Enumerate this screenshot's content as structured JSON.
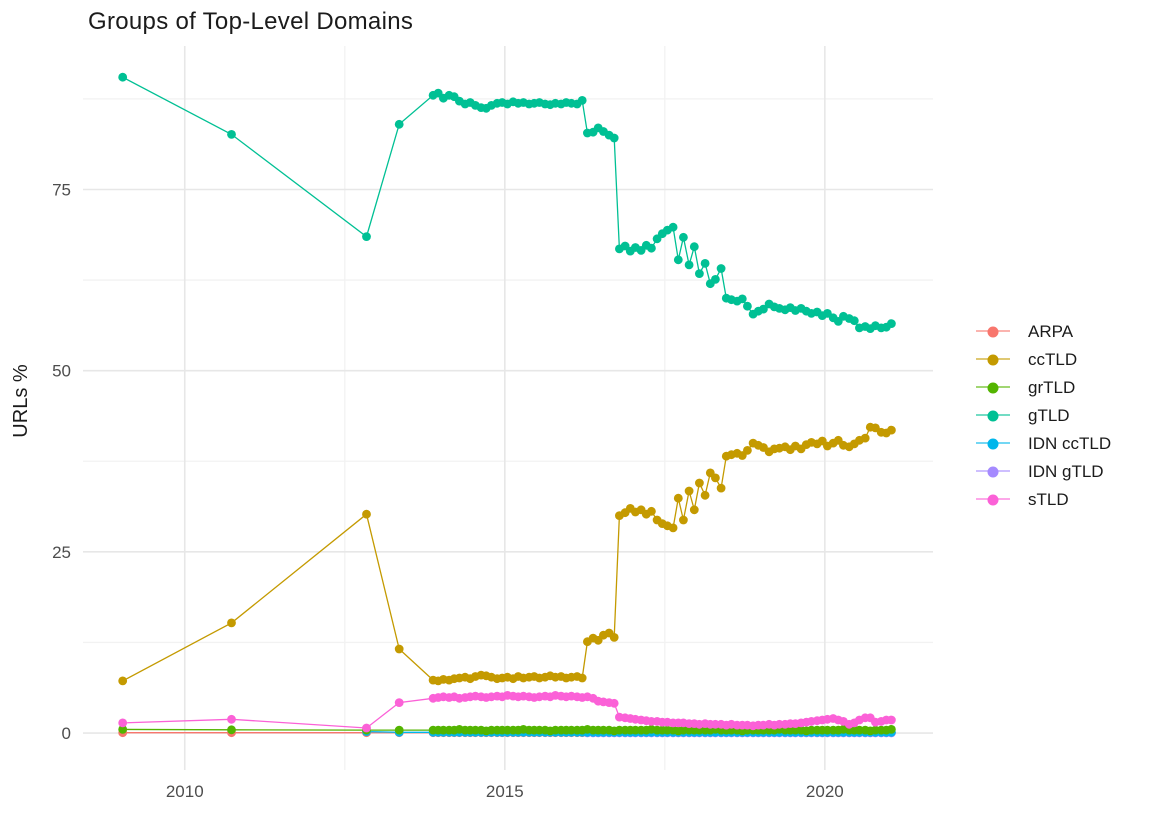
{
  "title": "Groups of Top-Level Domains",
  "ylabel": "URLs %",
  "chart_data": {
    "type": "line",
    "title": "Groups of Top-Level Domains",
    "xlabel": "",
    "ylabel": "URLs %",
    "grid": true,
    "legend_position": "right",
    "point_radius": 4.4,
    "line_width": 1.3,
    "xlim": [
      2008.41,
      2021.69
    ],
    "ylim": [
      -5.1,
      94.8
    ],
    "x_ticks": [
      2010,
      2015,
      2020
    ],
    "x_tick_labels": [
      "2010",
      "2015",
      "2020"
    ],
    "x_minor_ticks": [
      2012.5,
      2017.5
    ],
    "y_ticks": [
      0,
      25,
      50,
      75
    ],
    "y_tick_labels": [
      "0",
      "25",
      "50",
      "75"
    ],
    "y_minor_ticks": [
      12.5,
      37.5,
      62.5,
      87.5
    ],
    "colors": {
      "background": "#ffffff",
      "grid_major": "#e7e7e7",
      "grid_minor": "#f2f2f2",
      "tick_text": "#4d4d4d",
      "title_text": "#1b1b1b"
    },
    "draw_order": [
      "ARPA",
      "IDN gTLD",
      "IDN ccTLD",
      "grTLD",
      "ccTLD",
      "gTLD",
      "sTLD"
    ],
    "x_monthly": [
      2013.88,
      2013.96,
      2014.04,
      2014.13,
      2014.21,
      2014.29,
      2014.38,
      2014.46,
      2014.54,
      2014.63,
      2014.71,
      2014.79,
      2014.88,
      2014.96,
      2015.04,
      2015.13,
      2015.21,
      2015.29,
      2015.38,
      2015.46,
      2015.54,
      2015.63,
      2015.71,
      2015.79,
      2015.88,
      2015.96,
      2016.04,
      2016.13,
      2016.21,
      2016.29,
      2016.38,
      2016.46,
      2016.54,
      2016.63,
      2016.71,
      2016.79,
      2016.88,
      2016.96,
      2017.04,
      2017.13,
      2017.21,
      2017.29,
      2017.38,
      2017.46,
      2017.54,
      2017.63,
      2017.71,
      2017.79,
      2017.88,
      2017.96,
      2018.04,
      2018.13,
      2018.21,
      2018.29,
      2018.38,
      2018.46,
      2018.54,
      2018.63,
      2018.71,
      2018.79,
      2018.88,
      2018.96,
      2019.04,
      2019.13,
      2019.21,
      2019.29,
      2019.38,
      2019.46,
      2019.54,
      2019.63,
      2019.71,
      2019.79,
      2019.88,
      2019.96,
      2020.04,
      2020.13,
      2020.21,
      2020.29,
      2020.38,
      2020.46,
      2020.54,
      2020.63,
      2020.71,
      2020.79,
      2020.88,
      2020.96,
      2021.04
    ],
    "series": [
      {
        "name": "ARPA",
        "color": "#F8766D",
        "x_prefix": [
          2009.03,
          2010.73,
          2012.84,
          2013.35
        ],
        "y_prefix": [
          0.05,
          0.05,
          0.05,
          0.05
        ],
        "monthly_start_index": 0,
        "y_monthly": [
          0.05,
          0.05,
          0.05,
          0.05,
          0.05,
          0.05,
          0.05,
          0.05,
          0.05,
          0.05,
          0.05,
          0.05,
          0.05,
          0.05,
          0.05,
          0.05,
          0.05,
          0.05,
          0.05,
          0.05,
          0.05,
          0.05,
          0.05,
          0.05,
          0.05,
          0.05,
          0.05,
          0.05,
          0.05,
          0.05,
          0.05,
          0.05,
          0.05,
          0.05,
          0.05,
          0.05,
          0.05,
          0.05,
          0.05,
          0.05,
          0.05,
          0.05,
          0.05,
          0.05,
          0.05,
          0.05,
          0.05,
          0.05,
          0.05,
          0.05,
          0.05,
          0.05,
          0.05,
          0.05,
          0.05,
          0.05,
          0.05,
          0.05,
          0.05,
          0.05,
          0.05,
          0.05,
          0.05,
          0.05,
          0.05,
          0.05,
          0.05,
          0.05,
          0.05,
          0.05,
          0.05,
          0.05,
          0.05,
          0.05,
          0.05,
          0.05,
          0.05,
          0.05,
          0.05,
          0.05,
          0.05,
          0.05,
          0.05,
          0.05,
          0.05,
          0.05,
          0.05
        ]
      },
      {
        "name": "ccTLD",
        "color": "#C49A00",
        "x_prefix": [
          2009.03,
          2010.73,
          2012.84,
          2013.35
        ],
        "y_prefix": [
          7.2,
          15.2,
          30.2,
          11.6
        ],
        "monthly_start_index": 0,
        "y_monthly": [
          7.3,
          7.2,
          7.4,
          7.3,
          7.5,
          7.6,
          7.7,
          7.5,
          7.8,
          8.0,
          7.9,
          7.7,
          7.5,
          7.6,
          7.7,
          7.5,
          7.8,
          7.6,
          7.7,
          7.8,
          7.6,
          7.7,
          7.9,
          7.7,
          7.8,
          7.6,
          7.7,
          7.8,
          7.6,
          12.6,
          13.1,
          12.8,
          13.5,
          13.8,
          13.2,
          30.0,
          30.4,
          31.0,
          30.5,
          30.8,
          30.2,
          30.6,
          29.4,
          28.9,
          28.6,
          28.3,
          32.4,
          29.4,
          33.4,
          30.8,
          34.5,
          32.8,
          35.9,
          35.2,
          33.8,
          38.2,
          38.4,
          38.6,
          38.3,
          39.0,
          40.0,
          39.7,
          39.4,
          38.8,
          39.2,
          39.3,
          39.5,
          39.1,
          39.6,
          39.2,
          39.8,
          40.1,
          39.9,
          40.3,
          39.6,
          40.0,
          40.4,
          39.7,
          39.5,
          39.9,
          40.4,
          40.7,
          42.2,
          42.1,
          41.5,
          41.4,
          41.8
        ]
      },
      {
        "name": "grTLD",
        "color": "#53B400",
        "x_prefix": [
          2009.03,
          2010.73,
          2012.84,
          2013.35
        ],
        "y_prefix": [
          0.5,
          0.45,
          0.4,
          0.4
        ],
        "monthly_start_index": 0,
        "y_monthly": [
          0.4,
          0.4,
          0.4,
          0.4,
          0.4,
          0.5,
          0.4,
          0.4,
          0.4,
          0.4,
          0.3,
          0.4,
          0.4,
          0.4,
          0.4,
          0.4,
          0.4,
          0.5,
          0.4,
          0.4,
          0.4,
          0.4,
          0.3,
          0.4,
          0.4,
          0.4,
          0.4,
          0.4,
          0.4,
          0.5,
          0.4,
          0.4,
          0.4,
          0.4,
          0.3,
          0.4,
          0.4,
          0.4,
          0.4,
          0.4,
          0.4,
          0.5,
          0.4,
          0.4,
          0.4,
          0.4,
          0.3,
          0.4,
          0.4,
          0.4,
          0.4,
          0.4,
          0.4,
          0.5,
          0.4,
          0.4,
          0.4,
          0.4,
          0.3,
          0.4,
          0.4,
          0.4,
          0.4,
          0.4,
          0.4,
          0.5,
          0.4,
          0.4,
          0.4,
          0.4,
          0.3,
          0.4,
          0.4,
          0.4,
          0.4,
          0.4,
          0.4,
          0.5,
          0.4,
          0.4,
          0.4,
          0.4,
          0.3,
          0.4,
          0.4,
          0.4,
          0.5
        ]
      },
      {
        "name": "gTLD",
        "color": "#00C094",
        "x_prefix": [
          2009.03,
          2010.73,
          2012.84,
          2013.35
        ],
        "y_prefix": [
          90.5,
          82.6,
          68.5,
          84.0
        ],
        "monthly_start_index": 0,
        "y_monthly": [
          88.0,
          88.3,
          87.6,
          88.0,
          87.8,
          87.2,
          86.8,
          87.0,
          86.6,
          86.3,
          86.2,
          86.6,
          86.9,
          87.0,
          86.8,
          87.1,
          86.9,
          87.0,
          86.8,
          86.9,
          87.0,
          86.8,
          86.7,
          86.9,
          86.8,
          87.0,
          86.9,
          86.8,
          87.3,
          82.8,
          82.9,
          83.5,
          83.0,
          82.5,
          82.1,
          66.8,
          67.2,
          66.5,
          67.0,
          66.6,
          67.3,
          66.9,
          68.2,
          68.9,
          69.4,
          69.8,
          65.3,
          68.4,
          64.6,
          67.1,
          63.4,
          64.8,
          62.0,
          62.6,
          64.1,
          60.0,
          59.8,
          59.6,
          59.9,
          58.9,
          57.8,
          58.2,
          58.5,
          59.2,
          58.8,
          58.6,
          58.4,
          58.7,
          58.3,
          58.6,
          58.2,
          57.9,
          58.1,
          57.6,
          57.9,
          57.3,
          56.8,
          57.5,
          57.2,
          56.9,
          55.9,
          56.1,
          55.8,
          56.2,
          55.9,
          56.0,
          56.5
        ]
      },
      {
        "name": "IDN ccTLD",
        "color": "#00B6EB",
        "x_prefix": [
          2012.84,
          2013.35
        ],
        "y_prefix": [
          0.2,
          0.1
        ],
        "monthly_start_index": 0,
        "y_monthly": [
          0.1,
          0.1,
          0.1,
          0.1,
          0.1,
          0.1,
          0.1,
          0.1,
          0.1,
          0.1,
          0.1,
          0.1,
          0.1,
          0.1,
          0.1,
          0.1,
          0.1,
          0.1,
          0.1,
          0.1,
          0.1,
          0.1,
          0.1,
          0.1,
          0.1,
          0.1,
          0.1,
          0.1,
          0.1,
          0.1,
          0.1,
          0.1,
          0.1,
          0.1,
          0.1,
          0.1,
          0.1,
          0.1,
          0.1,
          0.1,
          0.1,
          0.1,
          0.1,
          0.1,
          0.1,
          0.1,
          0.1,
          0.1,
          0.1,
          0.1,
          0.1,
          0.1,
          0.1,
          0.1,
          0.1,
          0.1,
          0.1,
          0.1,
          0.1,
          0.1,
          0.1,
          0.1,
          0.1,
          0.1,
          0.1,
          0.1,
          0.1,
          0.1,
          0.1,
          0.1,
          0.1,
          0.1,
          0.1,
          0.1,
          0.1,
          0.1,
          0.1,
          0.1,
          0.1,
          0.1,
          0.1,
          0.1,
          0.1,
          0.1,
          0.1,
          0.1,
          0.1
        ]
      },
      {
        "name": "IDN gTLD",
        "color": "#A58AFF",
        "x_prefix": [],
        "y_prefix": [],
        "monthly_start_index": 29,
        "y_monthly": [
          0.02,
          0.02,
          0.02,
          0.02,
          0.02,
          0.02,
          0.02,
          0.02,
          0.02,
          0.02,
          0.02,
          0.02,
          0.02,
          0.02,
          0.02,
          0.02,
          0.02,
          0.02,
          0.02,
          0.02,
          0.02,
          0.02,
          0.02,
          0.02,
          0.02,
          0.02,
          0.02,
          0.02,
          0.02,
          0.02,
          0.02,
          0.02,
          0.02,
          0.02,
          0.02,
          0.02,
          0.02,
          0.02,
          0.02,
          0.02,
          0.02,
          0.02,
          0.02,
          0.02,
          0.02,
          0.02,
          0.02,
          0.02,
          0.02,
          0.02,
          0.02,
          0.02,
          0.02,
          0.02,
          0.02,
          0.02,
          0.02,
          0.02
        ]
      },
      {
        "name": "sTLD",
        "color": "#FB61D7",
        "x_prefix": [
          2009.03,
          2010.73,
          2012.84,
          2013.35
        ],
        "y_prefix": [
          1.4,
          1.9,
          0.7,
          4.2
        ],
        "monthly_start_index": 0,
        "y_monthly": [
          4.8,
          4.9,
          5.0,
          4.9,
          5.0,
          4.8,
          4.9,
          5.0,
          5.1,
          5.0,
          4.9,
          5.0,
          5.1,
          5.0,
          5.2,
          5.1,
          5.0,
          5.1,
          5.0,
          4.9,
          5.0,
          5.1,
          5.0,
          5.2,
          5.1,
          5.0,
          5.1,
          5.0,
          4.9,
          5.0,
          4.8,
          4.4,
          4.3,
          4.2,
          4.1,
          2.2,
          2.1,
          2.0,
          1.9,
          1.8,
          1.7,
          1.6,
          1.6,
          1.5,
          1.5,
          1.4,
          1.4,
          1.4,
          1.3,
          1.3,
          1.2,
          1.3,
          1.2,
          1.2,
          1.2,
          1.1,
          1.2,
          1.1,
          1.1,
          1.1,
          1.0,
          1.1,
          1.1,
          1.2,
          1.1,
          1.2,
          1.2,
          1.3,
          1.3,
          1.4,
          1.5,
          1.6,
          1.7,
          1.8,
          1.9,
          2.0,
          1.8,
          1.6,
          1.2,
          1.4,
          1.8,
          2.1,
          2.1,
          1.5,
          1.6,
          1.8,
          1.8
        ]
      }
    ]
  }
}
